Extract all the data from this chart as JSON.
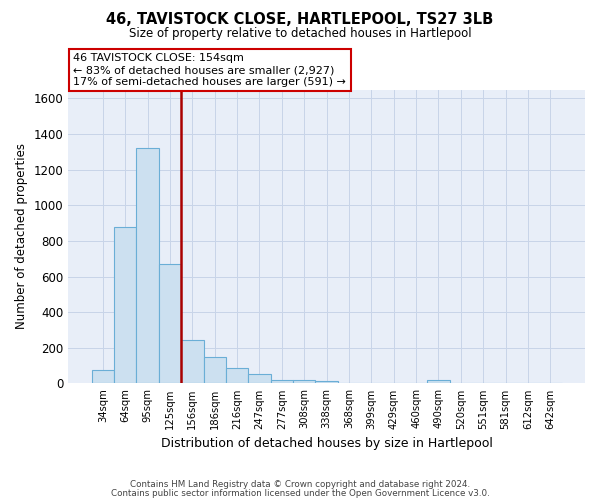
{
  "title": "46, TAVISTOCK CLOSE, HARTLEPOOL, TS27 3LB",
  "subtitle": "Size of property relative to detached houses in Hartlepool",
  "xlabel": "Distribution of detached houses by size in Hartlepool",
  "ylabel": "Number of detached properties",
  "footnote1": "Contains HM Land Registry data © Crown copyright and database right 2024.",
  "footnote2": "Contains public sector information licensed under the Open Government Licence v3.0.",
  "bin_labels": [
    "34sqm",
    "64sqm",
    "95sqm",
    "125sqm",
    "156sqm",
    "186sqm",
    "216sqm",
    "247sqm",
    "277sqm",
    "308sqm",
    "338sqm",
    "368sqm",
    "399sqm",
    "429sqm",
    "460sqm",
    "490sqm",
    "520sqm",
    "551sqm",
    "581sqm",
    "612sqm",
    "642sqm"
  ],
  "bar_values": [
    75,
    880,
    1320,
    670,
    245,
    148,
    85,
    52,
    22,
    22,
    15,
    0,
    0,
    0,
    0,
    22,
    0,
    0,
    0,
    0,
    0
  ],
  "bar_color": "#cce0f0",
  "bar_edge_color": "#6aaed6",
  "grid_color": "#c8d4e8",
  "annotation_text": "46 TAVISTOCK CLOSE: 154sqm\n← 83% of detached houses are smaller (2,927)\n17% of semi-detached houses are larger (591) →",
  "annotation_box_color": "white",
  "annotation_box_edge_color": "#cc0000",
  "vline_color": "#aa0000",
  "vline_bin_index": 3,
  "ylim": [
    0,
    1650
  ],
  "yticks": [
    0,
    200,
    400,
    600,
    800,
    1000,
    1200,
    1400,
    1600
  ],
  "fig_bg_color": "#ffffff",
  "plot_bg_color": "#e8eef8"
}
